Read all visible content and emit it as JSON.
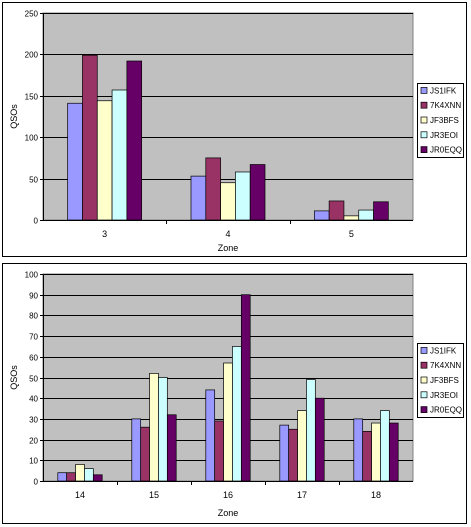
{
  "chart_data": [
    {
      "type": "bar",
      "categories": [
        "3",
        "4",
        "5"
      ],
      "xlabel": "Zone",
      "ylabel": "QSOs",
      "ylim": [
        0,
        250
      ],
      "yticks": [
        0,
        50,
        100,
        150,
        200,
        250
      ],
      "grid": true,
      "legend_position": "right",
      "series": [
        {
          "name": "JS1IFK",
          "color": "#9999ff",
          "values": [
            141,
            53,
            11
          ]
        },
        {
          "name": "7K4XNN",
          "color": "#993366",
          "values": [
            199,
            75,
            23
          ]
        },
        {
          "name": "JF3BFS",
          "color": "#ffffcc",
          "values": [
            144,
            45,
            5
          ]
        },
        {
          "name": "JR3EOI",
          "color": "#ccffff",
          "values": [
            157,
            58,
            12
          ]
        },
        {
          "name": "JR0EQQ",
          "color": "#660066",
          "values": [
            192,
            67,
            22
          ]
        }
      ]
    },
    {
      "type": "bar",
      "categories": [
        "14",
        "15",
        "16",
        "17",
        "18"
      ],
      "xlabel": "Zone",
      "ylabel": "QSOs",
      "ylim": [
        0,
        100
      ],
      "yticks": [
        0,
        10,
        20,
        30,
        40,
        50,
        60,
        70,
        80,
        90,
        100
      ],
      "grid": true,
      "legend_position": "right",
      "series": [
        {
          "name": "JS1IFK",
          "color": "#9999ff",
          "values": [
            4,
            30,
            44,
            27,
            30
          ]
        },
        {
          "name": "7K4XNN",
          "color": "#993366",
          "values": [
            4,
            26,
            29,
            25,
            24
          ]
        },
        {
          "name": "JF3BFS",
          "color": "#ffffcc",
          "values": [
            8,
            52,
            57,
            34,
            28
          ]
        },
        {
          "name": "JR3EOI",
          "color": "#ccffff",
          "values": [
            6,
            50,
            65,
            49,
            34
          ]
        },
        {
          "name": "JR0EQQ",
          "color": "#660066",
          "values": [
            3,
            32,
            90,
            40,
            28
          ]
        }
      ]
    }
  ]
}
